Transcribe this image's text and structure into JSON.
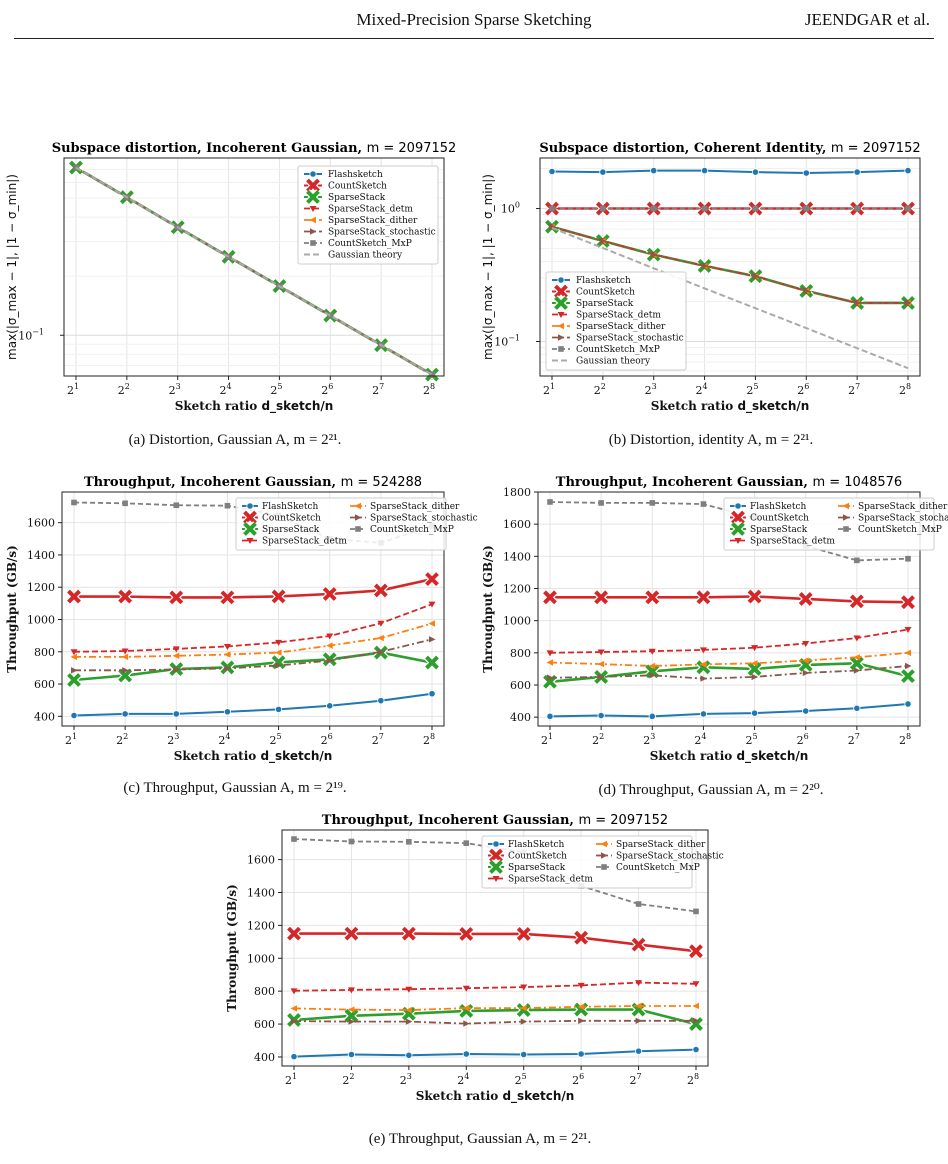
{
  "header": {
    "title": "Mixed-Precision Sparse Sketching",
    "author": "JEENDGAR et al."
  },
  "captions": {
    "a": "(a) Distortion, Gaussian A, m = 2²¹.",
    "b": "(b) Distortion, identity A, m = 2²¹.",
    "c": "(c) Throughput, Gaussian A, m = 2¹⁹.",
    "d": "(d) Throughput, Gaussian A, m = 2²⁰.",
    "e": "(e) Throughput, Gaussian A, m = 2²¹."
  },
  "styles": {
    "Flashsketch": {
      "color": "#1f77b4",
      "dash": "",
      "marker": "circle",
      "width": 2
    },
    "FlashSketch": {
      "color": "#1f77b4",
      "dash": "",
      "marker": "circle",
      "width": 2
    },
    "CountSketch": {
      "color": "#d62728",
      "dash": "",
      "marker": "bigx",
      "width": 2.6
    },
    "SparseStack": {
      "color": "#2ca02c",
      "dash": "",
      "marker": "bigx",
      "width": 2.6
    },
    "SparseStack_detm": {
      "color": "#d62728",
      "dash": "6,3",
      "marker": "tri",
      "width": 1.8
    },
    "SparseStack_dither": {
      "color": "#ff7f0e",
      "dash": "7,3,2,3",
      "marker": "lt",
      "width": 1.8
    },
    "SparseStack_stochastic": {
      "color": "#8c564b",
      "dash": "7,3,2,3",
      "marker": "rt",
      "width": 1.8
    },
    "CountSketch_MxP": {
      "color": "#7f7f7f",
      "dash": "5,3",
      "marker": "square",
      "width": 1.8
    },
    "Gaussian theory": {
      "color": "#aaaaaa",
      "dash": "6,3",
      "marker": "none",
      "width": 2
    }
  },
  "chart_data": [
    {
      "id": "a",
      "type": "line",
      "title": "Subspace distortion, Incoherent Gaussian,",
      "title_math": "m = 2097152",
      "xlabel": "Sketch ratio",
      "xlabel_math": "d_sketch/n",
      "ylabel": "max(|σ_max − 1|, |1 − σ_min|)",
      "x": [
        "2^1",
        "2^2",
        "2^3",
        "2^4",
        "2^5",
        "2^6",
        "2^7",
        "2^8"
      ],
      "yscale": "log",
      "ylim": [
        0.062,
        0.8
      ],
      "yticks": [
        "10^-1"
      ],
      "legend": "top-right",
      "grid": true,
      "series": [
        {
          "name": "Flashsketch",
          "values": [
            0.715,
            0.505,
            0.355,
            0.251,
            0.178,
            0.126,
            0.089,
            0.063
          ]
        },
        {
          "name": "CountSketch",
          "values": [
            0.715,
            0.505,
            0.355,
            0.251,
            0.178,
            0.126,
            0.089,
            0.063
          ]
        },
        {
          "name": "SparseStack",
          "values": [
            0.715,
            0.505,
            0.355,
            0.251,
            0.178,
            0.126,
            0.089,
            0.063
          ]
        },
        {
          "name": "SparseStack_detm",
          "values": [
            0.715,
            0.505,
            0.355,
            0.251,
            0.178,
            0.126,
            0.089,
            0.063
          ]
        },
        {
          "name": "SparseStack_dither",
          "values": [
            0.715,
            0.505,
            0.355,
            0.251,
            0.178,
            0.126,
            0.089,
            0.063
          ]
        },
        {
          "name": "SparseStack_stochastic",
          "values": [
            0.715,
            0.505,
            0.355,
            0.251,
            0.178,
            0.126,
            0.089,
            0.063
          ]
        },
        {
          "name": "CountSketch_MxP",
          "values": [
            0.715,
            0.505,
            0.355,
            0.251,
            0.178,
            0.126,
            0.089,
            0.063
          ]
        },
        {
          "name": "Gaussian theory",
          "values": [
            0.715,
            0.505,
            0.355,
            0.251,
            0.178,
            0.126,
            0.089,
            0.063
          ]
        }
      ]
    },
    {
      "id": "b",
      "type": "line",
      "title": "Subspace distortion, Coherent Identity,",
      "title_math": "m = 2097152",
      "xlabel": "Sketch ratio",
      "xlabel_math": "d_sketch/n",
      "ylabel": "max(|σ_max − 1|, |1 − σ_min|)",
      "x": [
        "2^1",
        "2^2",
        "2^3",
        "2^4",
        "2^5",
        "2^6",
        "2^7",
        "2^8"
      ],
      "yscale": "log",
      "ylim": [
        0.055,
        2.4
      ],
      "yticks": [
        "10^-1",
        "10^0"
      ],
      "legend": "bottom-left",
      "grid": true,
      "series": [
        {
          "name": "Flashsketch",
          "values": [
            1.9,
            1.88,
            1.93,
            1.93,
            1.88,
            1.85,
            1.88,
            1.93
          ]
        },
        {
          "name": "CountSketch",
          "values": [
            1.0,
            1.0,
            1.0,
            1.0,
            1.0,
            1.0,
            1.0,
            1.0
          ]
        },
        {
          "name": "SparseStack",
          "values": [
            0.73,
            0.57,
            0.45,
            0.37,
            0.31,
            0.24,
            0.195,
            0.195
          ]
        },
        {
          "name": "SparseStack_detm",
          "values": [
            0.73,
            0.57,
            0.45,
            0.37,
            0.31,
            0.24,
            0.195,
            0.195
          ]
        },
        {
          "name": "SparseStack_dither",
          "values": [
            0.73,
            0.57,
            0.45,
            0.37,
            0.31,
            0.24,
            0.195,
            0.195
          ]
        },
        {
          "name": "SparseStack_stochastic",
          "values": [
            0.73,
            0.57,
            0.45,
            0.37,
            0.31,
            0.24,
            0.195,
            0.195
          ]
        },
        {
          "name": "CountSketch_MxP",
          "values": [
            1.0,
            1.0,
            1.0,
            1.0,
            1.0,
            1.0,
            1.0,
            1.0
          ]
        },
        {
          "name": "Gaussian theory",
          "values": [
            0.715,
            0.505,
            0.355,
            0.251,
            0.178,
            0.126,
            0.089,
            0.063
          ]
        }
      ]
    },
    {
      "id": "c",
      "type": "line",
      "title": "Throughput, Incoherent Gaussian,",
      "title_math": "m = 524288",
      "xlabel": "Sketch ratio",
      "xlabel_math": "d_sketch/n",
      "ylabel": "Throughput (GB/s)",
      "x": [
        "2^1",
        "2^2",
        "2^3",
        "2^4",
        "2^5",
        "2^6",
        "2^7",
        "2^8"
      ],
      "yscale": "linear",
      "ylim": [
        340,
        1790
      ],
      "yticks": [
        400,
        600,
        800,
        1000,
        1200,
        1400,
        1600
      ],
      "legend": "top-right",
      "grid": true,
      "series": [
        {
          "name": "FlashSketch",
          "values": [
            405,
            415,
            415,
            428,
            443,
            465,
            497,
            540
          ]
        },
        {
          "name": "CountSketch",
          "values": [
            1142,
            1142,
            1137,
            1137,
            1143,
            1158,
            1180,
            1250
          ]
        },
        {
          "name": "SparseStack",
          "values": [
            625,
            653,
            693,
            703,
            735,
            753,
            795,
            733
          ]
        },
        {
          "name": "SparseStack_detm",
          "values": [
            800,
            805,
            818,
            833,
            858,
            898,
            977,
            1095
          ]
        },
        {
          "name": "SparseStack_dither",
          "values": [
            768,
            768,
            775,
            783,
            795,
            838,
            885,
            975
          ]
        },
        {
          "name": "SparseStack_stochastic",
          "values": [
            685,
            685,
            690,
            697,
            715,
            745,
            800,
            877
          ]
        },
        {
          "name": "CountSketch_MxP",
          "values": [
            1725,
            1720,
            1708,
            1705,
            1645,
            1500,
            1475,
            1580
          ]
        }
      ]
    },
    {
      "id": "d",
      "type": "line",
      "title": "Throughput, Incoherent Gaussian,",
      "title_math": "m = 1048576",
      "xlabel": "Sketch ratio",
      "xlabel_math": "d_sketch/n",
      "ylabel": "Throughput (GB/s)",
      "x": [
        "2^1",
        "2^2",
        "2^3",
        "2^4",
        "2^5",
        "2^6",
        "2^7",
        "2^8"
      ],
      "yscale": "linear",
      "ylim": [
        345,
        1800
      ],
      "yticks": [
        400,
        600,
        800,
        1000,
        1200,
        1400,
        1600,
        1800
      ],
      "legend": "top-right",
      "grid": true,
      "series": [
        {
          "name": "FlashSketch",
          "values": [
            405,
            410,
            405,
            420,
            425,
            438,
            455,
            482
          ]
        },
        {
          "name": "CountSketch",
          "values": [
            1145,
            1145,
            1145,
            1145,
            1150,
            1135,
            1120,
            1115
          ]
        },
        {
          "name": "SparseStack",
          "values": [
            620,
            650,
            685,
            710,
            700,
            725,
            735,
            655
          ]
        },
        {
          "name": "SparseStack_detm",
          "values": [
            800,
            805,
            810,
            818,
            832,
            858,
            892,
            945
          ]
        },
        {
          "name": "SparseStack_dither",
          "values": [
            740,
            730,
            718,
            728,
            735,
            752,
            772,
            800
          ]
        },
        {
          "name": "SparseStack_stochastic",
          "values": [
            645,
            650,
            660,
            640,
            650,
            675,
            690,
            718
          ]
        },
        {
          "name": "CountSketch_MxP",
          "values": [
            1738,
            1732,
            1732,
            1725,
            1640,
            1465,
            1375,
            1385
          ]
        }
      ]
    },
    {
      "id": "e",
      "type": "line",
      "title": "Throughput, Incoherent Gaussian,",
      "title_math": "m = 2097152",
      "xlabel": "Sketch ratio",
      "xlabel_math": "d_sketch/n",
      "ylabel": "Throughput (GB/s)",
      "x": [
        "2^1",
        "2^2",
        "2^3",
        "2^4",
        "2^5",
        "2^6",
        "2^7",
        "2^8"
      ],
      "yscale": "linear",
      "ylim": [
        345,
        1780
      ],
      "yticks": [
        400,
        600,
        800,
        1000,
        1200,
        1400,
        1600
      ],
      "legend": "top-right",
      "grid": true,
      "series": [
        {
          "name": "FlashSketch",
          "values": [
            402,
            415,
            410,
            418,
            415,
            418,
            435,
            445
          ]
        },
        {
          "name": "CountSketch",
          "values": [
            1150,
            1150,
            1150,
            1148,
            1148,
            1125,
            1083,
            1043
          ]
        },
        {
          "name": "SparseStack",
          "values": [
            625,
            650,
            663,
            680,
            685,
            688,
            688,
            600
          ]
        },
        {
          "name": "SparseStack_detm",
          "values": [
            802,
            808,
            812,
            818,
            825,
            835,
            852,
            845
          ]
        },
        {
          "name": "SparseStack_dither",
          "values": [
            695,
            688,
            685,
            697,
            697,
            705,
            710,
            710
          ]
        },
        {
          "name": "SparseStack_stochastic",
          "values": [
            618,
            615,
            615,
            603,
            615,
            620,
            620,
            620
          ]
        },
        {
          "name": "CountSketch_MxP",
          "values": [
            1725,
            1710,
            1708,
            1700,
            1645,
            1440,
            1330,
            1285
          ]
        }
      ]
    }
  ]
}
